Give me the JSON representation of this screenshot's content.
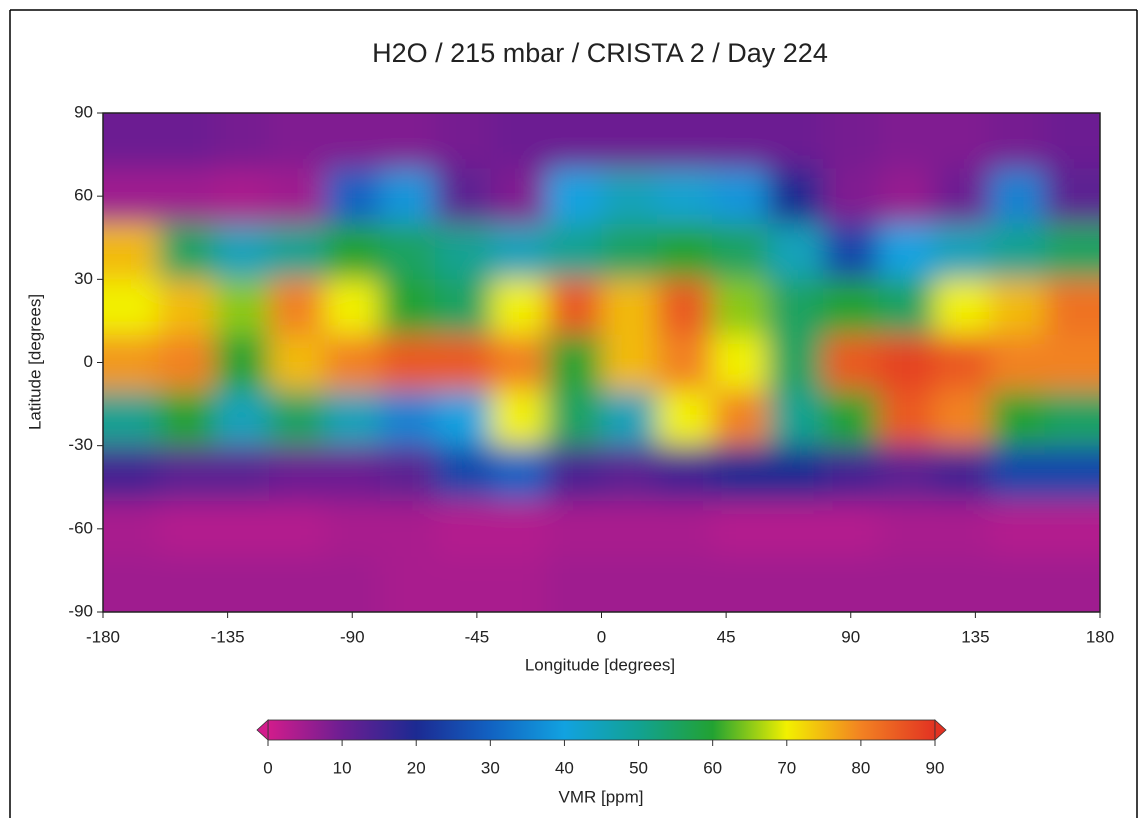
{
  "chart_data": {
    "type": "heatmap",
    "title": "H2O / 215 mbar / CRISTA 2 / Day 224",
    "xlabel": "Longitude [degrees]",
    "ylabel": "Latitude [degrees]",
    "x": [
      -170,
      -150,
      -130,
      -110,
      -90,
      -70,
      -50,
      -30,
      -10,
      10,
      30,
      50,
      70,
      90,
      110,
      130,
      150,
      170
    ],
    "y": [
      80,
      60,
      40,
      20,
      0,
      -20,
      -40,
      -60,
      -80
    ],
    "values": [
      [
        10,
        10,
        9,
        8,
        8,
        8,
        9,
        10,
        10,
        10,
        10,
        10,
        10,
        9,
        8,
        8,
        9,
        10
      ],
      [
        5,
        5,
        4,
        5,
        30,
        38,
        12,
        8,
        40,
        45,
        42,
        38,
        20,
        8,
        6,
        10,
        35,
        12
      ],
      [
        75,
        55,
        45,
        50,
        60,
        55,
        50,
        45,
        50,
        55,
        60,
        55,
        45,
        25,
        40,
        45,
        50,
        55
      ],
      [
        70,
        75,
        65,
        80,
        70,
        60,
        55,
        70,
        85,
        75,
        85,
        65,
        55,
        60,
        55,
        70,
        75,
        82
      ],
      [
        78,
        80,
        60,
        75,
        80,
        85,
        85,
        80,
        60,
        75,
        80,
        70,
        55,
        85,
        88,
        85,
        80,
        80
      ],
      [
        50,
        60,
        45,
        55,
        45,
        35,
        40,
        70,
        55,
        45,
        70,
        80,
        50,
        60,
        85,
        80,
        60,
        55
      ],
      [
        15,
        12,
        12,
        10,
        10,
        12,
        25,
        30,
        14,
        12,
        15,
        20,
        20,
        15,
        12,
        15,
        25,
        25
      ],
      [
        4,
        3,
        3,
        3,
        4,
        4,
        3,
        3,
        4,
        4,
        4,
        3,
        3,
        3,
        4,
        4,
        3,
        3
      ],
      [
        5,
        5,
        5,
        5,
        5,
        4,
        4,
        4,
        5,
        5,
        5,
        5,
        5,
        5,
        5,
        5,
        5,
        5
      ]
    ],
    "xlim": [
      -180,
      180
    ],
    "ylim": [
      -90,
      90
    ],
    "xticks": [
      -180,
      -135,
      -90,
      -45,
      0,
      45,
      90,
      135,
      180
    ],
    "yticks": [
      90,
      60,
      30,
      0,
      -30,
      -60,
      -90
    ],
    "colorbar_label": "VMR [ppm]",
    "clim": [
      0,
      90
    ],
    "cticks": [
      0,
      10,
      20,
      30,
      40,
      50,
      60,
      70,
      80,
      90
    ],
    "colormap": [
      "#d21c8c",
      "#6c1e92",
      "#1c2a92",
      "#1262c2",
      "#12a2e0",
      "#12a292",
      "#22a232",
      "#f2f000",
      "#f28222",
      "#e23222"
    ]
  }
}
